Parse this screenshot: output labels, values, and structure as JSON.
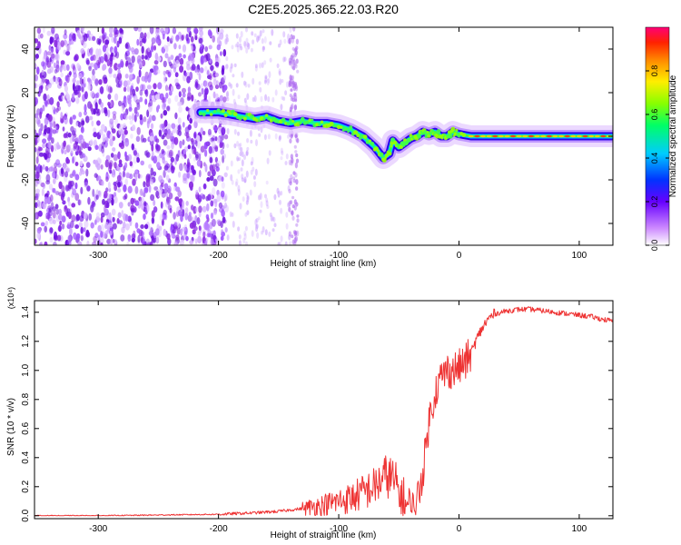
{
  "title": "C2E5.2025.365.22.03.R20",
  "chart_data": [
    {
      "type": "heatmap",
      "name": "spectrogram",
      "xlabel": "Height of straight line (km)",
      "ylabel": "Frequency (Hz)",
      "xlim": [
        -353,
        128
      ],
      "ylim": [
        -50,
        50
      ],
      "xticks": [
        -300,
        -200,
        -100,
        0,
        100
      ],
      "yticks": [
        -40,
        -20,
        0,
        20,
        40
      ],
      "colorbar": {
        "label": "Normalized spectral amplitude",
        "range": [
          0.0,
          1.0
        ],
        "ticks": [
          "0.0",
          "0.2",
          "0.4",
          "0.6",
          "0.8"
        ],
        "tick_values": [
          0.0,
          0.2,
          0.4,
          0.6,
          0.8
        ]
      },
      "ridge": {
        "x": [
          -215,
          -200,
          -190,
          -180,
          -170,
          -160,
          -150,
          -140,
          -130,
          -120,
          -110,
          -100,
          -90,
          -80,
          -70,
          -63,
          -58,
          -55,
          -50,
          -45,
          -40,
          -35,
          -30,
          -25,
          -20,
          -15,
          -10,
          -5,
          0,
          10,
          30,
          60,
          90,
          128
        ],
        "y": [
          11,
          11,
          10,
          9,
          8,
          9,
          7,
          6,
          7,
          6,
          6,
          5,
          3,
          0,
          -5,
          -10,
          -8,
          -2,
          -5,
          -3,
          -1,
          0,
          2,
          1,
          2,
          0,
          0,
          2,
          1,
          0,
          0,
          0,
          0,
          0
        ]
      }
    },
    {
      "type": "line",
      "name": "snr",
      "xlabel": "Height of straight line (km)",
      "ylabel": "SNR (10 * v/v)",
      "scale_label": "(x10⁴)",
      "xlim": [
        -353,
        128
      ],
      "ylim": [
        -0.02,
        1.48
      ],
      "xticks": [
        -300,
        -200,
        -100,
        0,
        100
      ],
      "yticks": [
        "0.0",
        "0.2",
        "0.4",
        "0.6",
        "0.8",
        "1.0",
        "1.2",
        "1.4"
      ],
      "ytick_values": [
        0.0,
        0.2,
        0.4,
        0.6,
        0.8,
        1.0,
        1.2,
        1.4
      ],
      "series": [
        {
          "name": "SNR",
          "color": "#ee3333",
          "x": [
            -353,
            -300,
            -250,
            -200,
            -170,
            -150,
            -130,
            -110,
            -100,
            -90,
            -80,
            -70,
            -65,
            -60,
            -55,
            -50,
            -45,
            -40,
            -35,
            -30,
            -27,
            -25,
            -20,
            -15,
            -10,
            -5,
            0,
            5,
            10,
            15,
            20,
            25,
            30,
            40,
            50,
            60,
            70,
            80,
            90,
            100,
            110,
            120,
            128
          ],
          "y": [
            0.0,
            0.0,
            0.005,
            0.01,
            0.02,
            0.03,
            0.05,
            0.08,
            0.1,
            0.12,
            0.16,
            0.2,
            0.24,
            0.28,
            0.25,
            0.16,
            0.08,
            0.03,
            0.1,
            0.3,
            0.5,
            0.65,
            0.85,
            0.95,
            1.0,
            1.0,
            1.02,
            1.05,
            1.12,
            1.22,
            1.3,
            1.36,
            1.39,
            1.41,
            1.42,
            1.42,
            1.41,
            1.4,
            1.39,
            1.38,
            1.37,
            1.35,
            1.34
          ]
        }
      ]
    }
  ],
  "colors": {
    "line": "#ee3333",
    "noise": "#7a1fe8"
  }
}
